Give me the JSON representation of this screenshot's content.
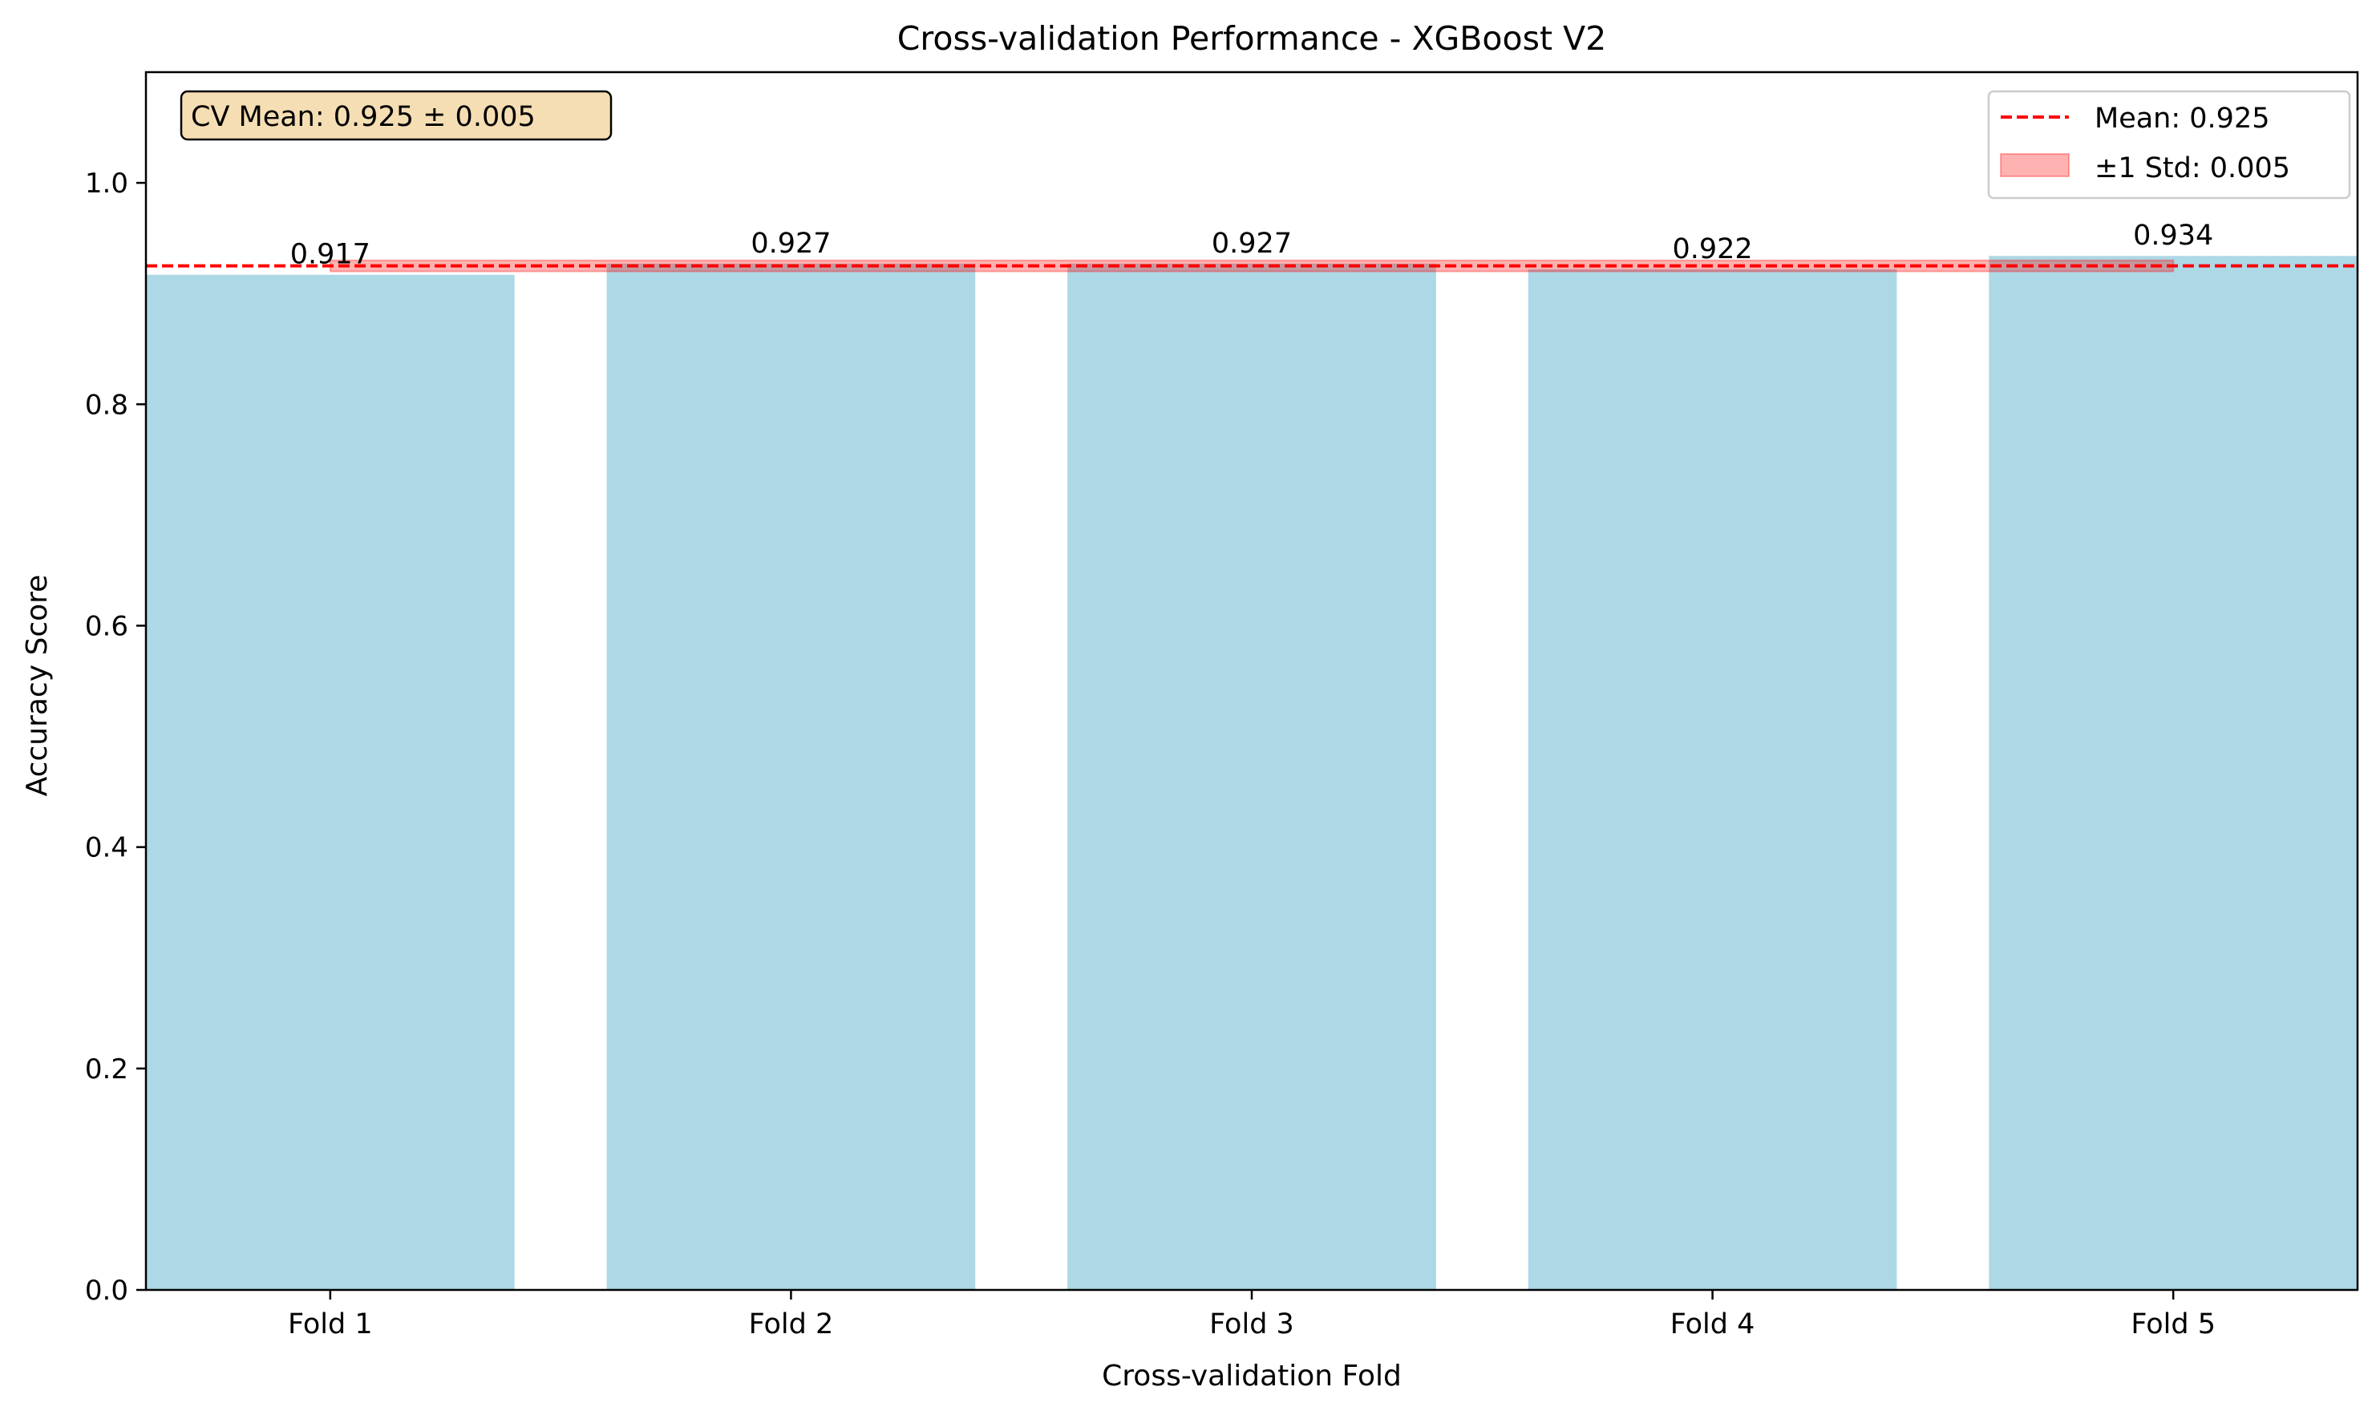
{
  "chart_data": {
    "type": "bar",
    "title": "Cross-validation Performance - XGBoost V2",
    "xlabel": "Cross-validation Fold",
    "ylabel": "Accuracy Score",
    "categories": [
      "Fold 1",
      "Fold 2",
      "Fold 3",
      "Fold 4",
      "Fold 5"
    ],
    "values": [
      0.917,
      0.927,
      0.927,
      0.922,
      0.934
    ],
    "value_labels": [
      "0.917",
      "0.927",
      "0.927",
      "0.922",
      "0.934"
    ],
    "ylim": [
      0,
      1.1
    ],
    "yticks": [
      0.0,
      0.2,
      0.4,
      0.6,
      0.8,
      1.0
    ],
    "ytick_labels": [
      "0.0",
      "0.2",
      "0.4",
      "0.6",
      "0.8",
      "1.0"
    ],
    "mean": 0.925,
    "std": 0.005,
    "grid": false,
    "legend": {
      "placement": "top-right",
      "entries": [
        {
          "label": "Mean: 0.925",
          "kind": "dashed-line"
        },
        {
          "label": "±1 Std: 0.005",
          "kind": "band"
        }
      ]
    },
    "annotation": {
      "text": "CV Mean: 0.925 ± 0.005",
      "placement": "top-left"
    },
    "colors": {
      "bar": "#add8e6",
      "mean_line": "#ff0000",
      "band": "#ff0000",
      "annotation_bg": "#f5deb3"
    }
  }
}
